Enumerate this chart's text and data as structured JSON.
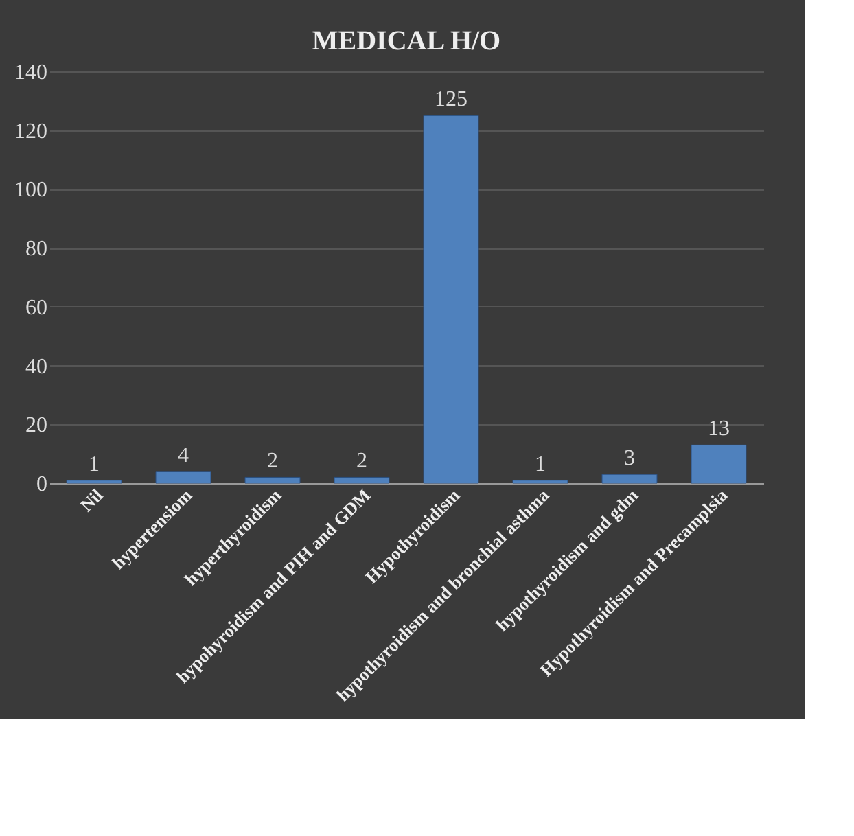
{
  "chart_data": {
    "type": "bar",
    "title": "MEDICAL H/O",
    "categories": [
      "Nil",
      "hypertensiom",
      "hyperthyroidism",
      "hypohyroidism and PIH and GDM",
      "Hypothyroidism",
      "hypothyroidism and bronchial asthma",
      "hypothyroidism and gdm",
      "Hypothyroidism and Precamplsia"
    ],
    "values": [
      1,
      4,
      2,
      2,
      125,
      1,
      3,
      13
    ],
    "color": "#4f81bd",
    "ylim": [
      0,
      140
    ],
    "yticks": [
      0,
      20,
      40,
      60,
      80,
      100,
      120,
      140
    ],
    "grid": "y",
    "data_labels": true
  }
}
